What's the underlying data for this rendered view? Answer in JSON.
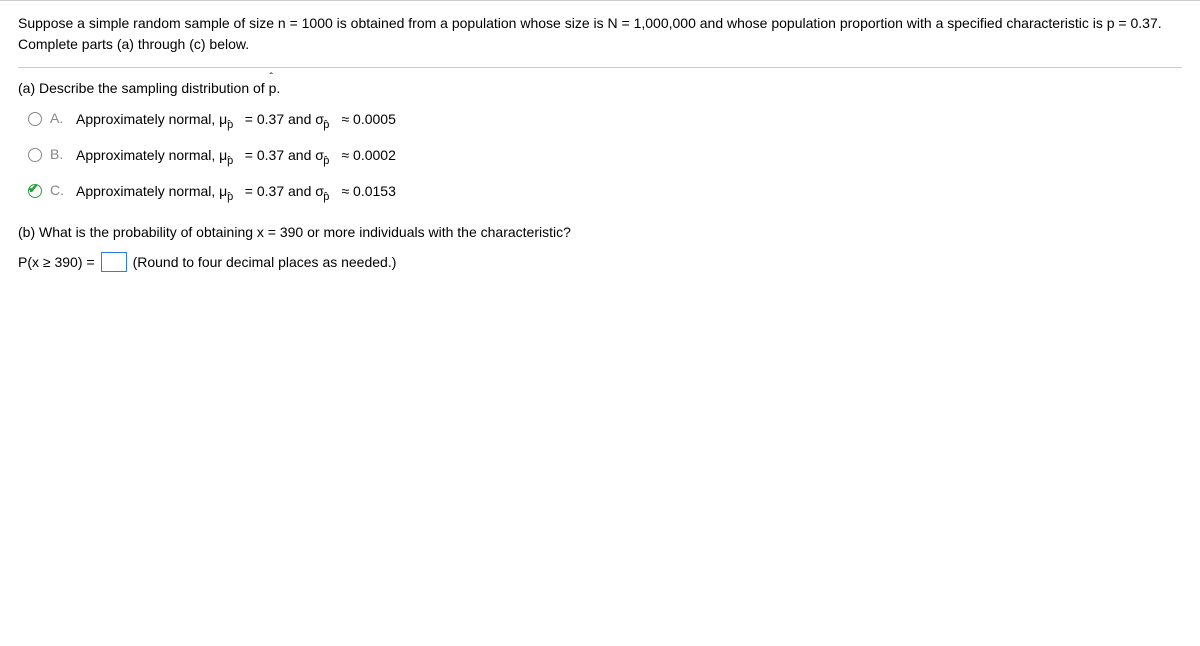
{
  "problem": {
    "statement": "Suppose a simple random sample of size n = 1000 is obtained from a population whose size is N = 1,000,000 and whose population proportion with a specified characteristic is p = 0.37. Complete parts (a) through (c) below."
  },
  "partA": {
    "label_prefix": "(a) Describe the sampling distribution of ",
    "label_var": "p",
    "label_suffix": ".",
    "options": [
      {
        "letter": "A.",
        "text_prefix": "Approximately normal, ",
        "mu": "μ",
        "mu_sub_caret": "ˆ",
        "mu_sub_p": "p",
        "eq1": " = 0.37 and ",
        "sigma": "σ",
        "sigma_sub_caret": "ˆ",
        "sigma_sub_p": "p",
        "eq2": " ≈ 0.0005",
        "selected": false
      },
      {
        "letter": "B.",
        "text_prefix": "Approximately normal, ",
        "mu": "μ",
        "mu_sub_caret": "ˆ",
        "mu_sub_p": "p",
        "eq1": " = 0.37 and ",
        "sigma": "σ",
        "sigma_sub_caret": "ˆ",
        "sigma_sub_p": "p",
        "eq2": " ≈ 0.0002",
        "selected": false
      },
      {
        "letter": "C.",
        "text_prefix": "Approximately normal, ",
        "mu": "μ",
        "mu_sub_caret": "ˆ",
        "mu_sub_p": "p",
        "eq1": " = 0.37 and ",
        "sigma": "σ",
        "sigma_sub_caret": "ˆ",
        "sigma_sub_p": "p",
        "eq2": " ≈ 0.0153",
        "selected": true
      }
    ]
  },
  "partB": {
    "label": "(b) What is the probability of obtaining x = 390 or more individuals with the characteristic?",
    "answer_prefix": "P(x ≥ 390) =",
    "answer_value": "",
    "hint": "(Round to four decimal places as needed.)"
  }
}
